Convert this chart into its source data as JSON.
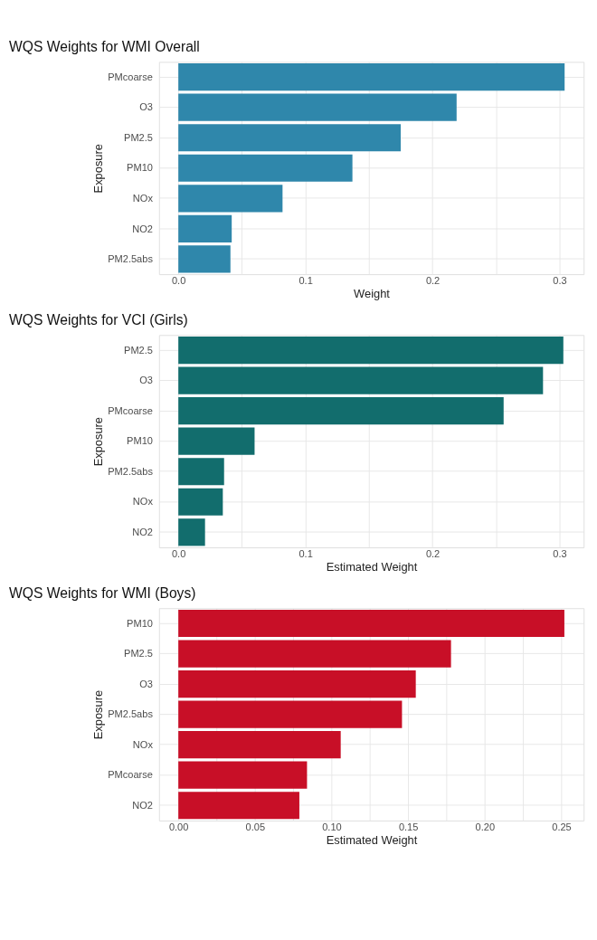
{
  "chart_data": [
    {
      "type": "bar",
      "orientation": "horizontal",
      "title": "WQS Weights for WMI Overall",
      "xlabel": "Weight",
      "ylabel": "Exposure",
      "categories": [
        "PMcoarse",
        "O3",
        "PM2.5",
        "PM10",
        "NOx",
        "NO2",
        "PM2.5abs"
      ],
      "values": [
        0.304,
        0.219,
        0.175,
        0.137,
        0.082,
        0.042,
        0.041
      ],
      "color": "#2f87ab",
      "xlim": [
        -0.0152,
        0.319
      ],
      "xticks": [
        {
          "value": 0.0,
          "label": "0.0"
        },
        {
          "value": 0.05,
          "label": null
        },
        0.1,
        {
          "value": 0.15,
          "label": null
        },
        0.2,
        {
          "value": 0.25,
          "label": null
        },
        0.3
      ],
      "grid": true
    },
    {
      "type": "bar",
      "orientation": "horizontal",
      "title": "WQS Weights for VCI (Girls)",
      "xlabel": "Estimated Weight",
      "ylabel": "Exposure",
      "categories": [
        "PM2.5",
        "O3",
        "PMcoarse",
        "PM10",
        "PM2.5abs",
        "NOx",
        "NO2"
      ],
      "values": [
        0.303,
        0.287,
        0.256,
        0.06,
        0.036,
        0.035,
        0.021
      ],
      "color": "#126d6d",
      "xlim": [
        -0.0152,
        0.319
      ],
      "xticks": [
        {
          "value": 0.0,
          "label": "0.0"
        },
        {
          "value": 0.05,
          "label": null
        },
        0.1,
        {
          "value": 0.15,
          "label": null
        },
        0.2,
        {
          "value": 0.25,
          "label": null
        },
        0.3
      ],
      "grid": true
    },
    {
      "type": "bar",
      "orientation": "horizontal",
      "title": "WQS Weights for WMI (Boys)",
      "xlabel": "Estimated Weight",
      "ylabel": "Exposure",
      "categories": [
        "PM10",
        "PM2.5",
        "O3",
        "PM2.5abs",
        "NOx",
        "PMcoarse",
        "NO2"
      ],
      "values": [
        0.252,
        0.178,
        0.155,
        0.146,
        0.106,
        0.084,
        0.079
      ],
      "color": "#c80f27",
      "xlim": [
        -0.0126,
        0.2646
      ],
      "xticks": [
        {
          "value": 0.0,
          "label": "0.00"
        },
        {
          "value": 0.025,
          "label": null
        },
        {
          "value": 0.05,
          "label": "0.05"
        },
        {
          "value": 0.075,
          "label": null
        },
        {
          "value": 0.1,
          "label": "0.10"
        },
        {
          "value": 0.125,
          "label": null
        },
        {
          "value": 0.15,
          "label": "0.15"
        },
        {
          "value": 0.175,
          "label": null
        },
        {
          "value": 0.2,
          "label": "0.20"
        },
        {
          "value": 0.225,
          "label": null
        },
        {
          "value": 0.25,
          "label": "0.25"
        }
      ],
      "grid": true
    }
  ]
}
